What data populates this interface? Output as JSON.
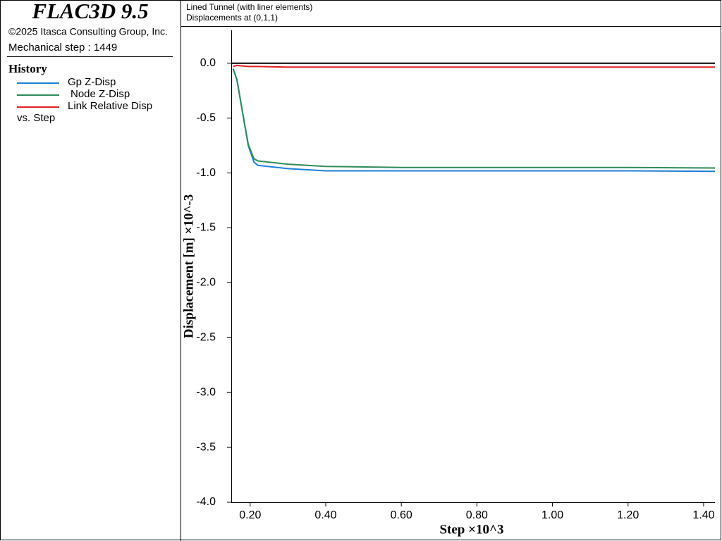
{
  "app": {
    "product": "FLAC3D 9.5",
    "copyright": "©2025 Itasca Consulting Group, Inc.",
    "step_info": "Mechanical step : 1449",
    "legend_title": "History",
    "legend_footer": "vs. Step"
  },
  "chart_data": {
    "type": "line",
    "title": "Lined Tunnel (with liner elements)",
    "subtitle": "Displacements at (0,1,1)",
    "x_label": "Step ×10^3",
    "y_label": "Displacement [m] ×10^-3",
    "x": [
      0.155,
      0.165,
      0.18,
      0.195,
      0.21,
      0.22,
      0.3,
      0.4,
      0.6,
      0.8,
      1.0,
      1.2,
      1.43
    ],
    "series": [
      {
        "name": "Gp Z-Disp",
        "color": "#1e7fd8",
        "values": [
          -0.05,
          -0.15,
          -0.45,
          -0.75,
          -0.9,
          -0.93,
          -0.96,
          -0.98,
          -0.98,
          -0.98,
          -0.98,
          -0.98,
          -0.985
        ]
      },
      {
        "name": "Node Z-Disp",
        "color": "#2e8b57",
        "values": [
          -0.05,
          -0.15,
          -0.45,
          -0.74,
          -0.87,
          -0.89,
          -0.92,
          -0.94,
          -0.95,
          -0.95,
          -0.95,
          -0.95,
          -0.955
        ]
      },
      {
        "name": "Link Relative Disp",
        "color": "#e02020",
        "values": [
          -0.03,
          -0.02,
          -0.025,
          -0.03,
          -0.03,
          -0.03,
          -0.035,
          -0.035,
          -0.035,
          -0.035,
          -0.035,
          -0.035,
          -0.035
        ]
      }
    ],
    "xlim": [
      0.15,
      1.43
    ],
    "ylim": [
      -4.0,
      0.3
    ],
    "xticks": [
      {
        "value": 0.2,
        "label": "0.20"
      },
      {
        "value": 0.4,
        "label": "0.40"
      },
      {
        "value": 0.6,
        "label": "0.60"
      },
      {
        "value": 0.8,
        "label": "0.80"
      },
      {
        "value": 1.0,
        "label": "1.00"
      },
      {
        "value": 1.2,
        "label": "1.20"
      },
      {
        "value": 1.4,
        "label": "1.40"
      }
    ],
    "yticks": [
      {
        "value": 0,
        "label": "0.0"
      },
      -0.5,
      {
        "value": -1,
        "label": "-1.0"
      },
      -1.5,
      {
        "value": -2,
        "label": "-2.0"
      },
      -2.5,
      {
        "value": -3,
        "label": "-3.0"
      },
      -3.5,
      {
        "value": -4,
        "label": "-4.0"
      }
    ],
    "grid": false
  }
}
